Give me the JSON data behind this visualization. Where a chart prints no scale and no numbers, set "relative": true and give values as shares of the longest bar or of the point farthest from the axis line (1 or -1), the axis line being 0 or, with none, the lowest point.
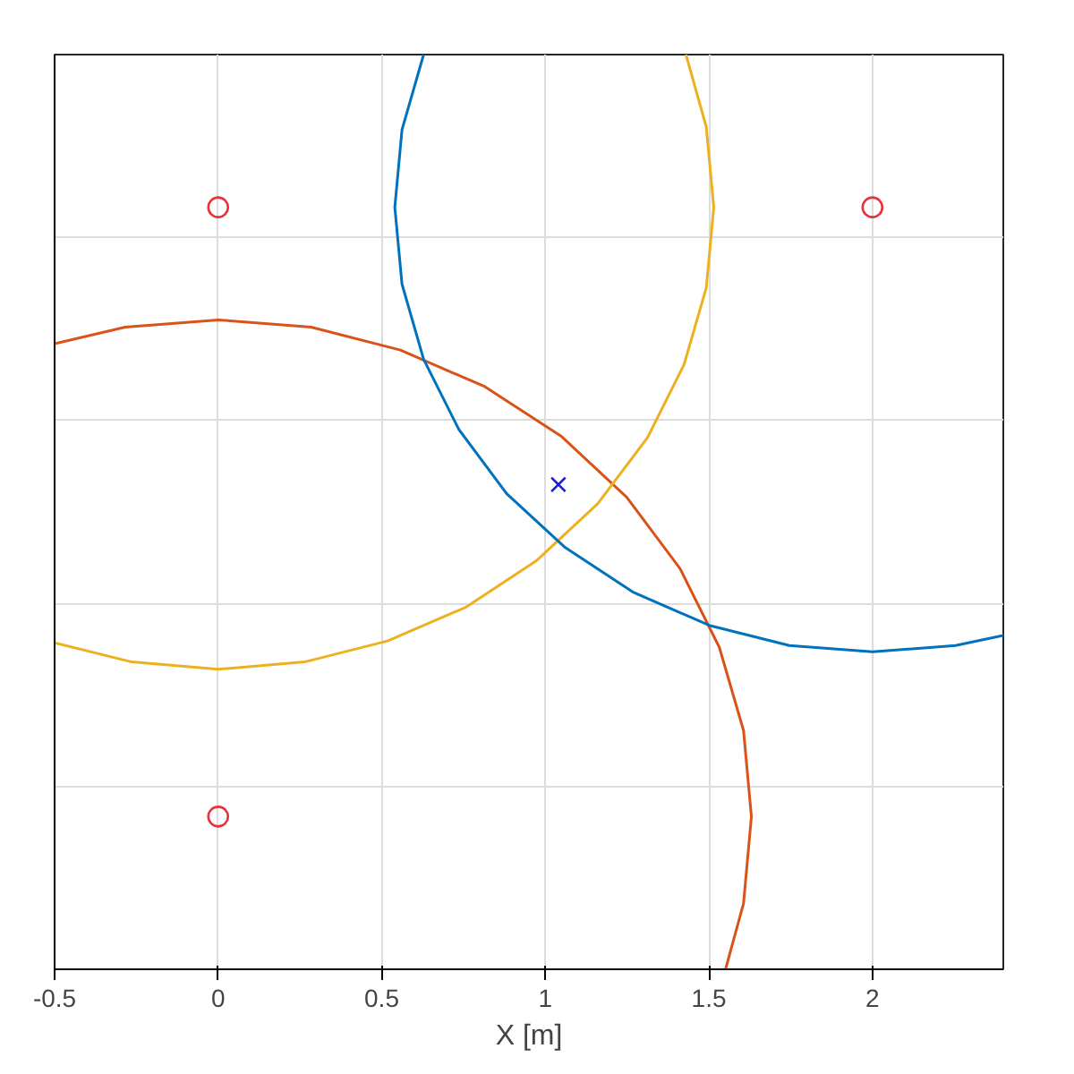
{
  "chart_data": {
    "type": "line",
    "relative": true,
    "xlabel": "X [m]",
    "xlim": [
      -0.5,
      2.4
    ],
    "xticks": [
      -0.5,
      0,
      0.5,
      1,
      1.5,
      2
    ],
    "grid": true,
    "line_style": "solid",
    "series": [
      {
        "color": "#d95319",
        "x": [
          -0.5,
          -0.284,
          0,
          0.284,
          0.557,
          0.815,
          1.048,
          1.249,
          1.412,
          1.532,
          1.606,
          1.63,
          1.606,
          1.551
        ],
        "values": [
          0.684,
          0.702,
          0.71,
          0.702,
          0.677,
          0.637,
          0.583,
          0.516,
          0.438,
          0.352,
          0.261,
          0.167,
          0.072,
          0
        ]
      },
      {
        "color": "#edb120",
        "x": [
          1.43,
          1.492,
          1.515,
          1.492,
          1.424,
          1.312,
          1.16,
          0.974,
          0.758,
          0.518,
          0.264,
          0,
          -0.264,
          -0.5
        ],
        "values": [
          1,
          0.921,
          0.833,
          0.745,
          0.661,
          0.581,
          0.509,
          0.447,
          0.396,
          0.359,
          0.336,
          0.328,
          0.336,
          0.357
        ]
      },
      {
        "color": "#0072bd",
        "x": [
          0.628,
          0.562,
          0.54,
          0.562,
          0.628,
          0.736,
          0.882,
          1.061,
          1.27,
          1.501,
          1.746,
          2,
          2.254,
          2.4
        ],
        "values": [
          1,
          0.918,
          0.833,
          0.749,
          0.667,
          0.59,
          0.52,
          0.461,
          0.412,
          0.376,
          0.354,
          0.347,
          0.354,
          0.365
        ]
      },
      {
        "type": "scatter",
        "marker": "circle",
        "color": "#e8323c",
        "x": [
          0,
          2,
          0
        ],
        "values": [
          0.833,
          0.833,
          0.167
        ]
      },
      {
        "type": "scatter",
        "marker": "cross",
        "color": "#1a1adb",
        "x": [
          1.04
        ],
        "values": [
          0.53
        ]
      }
    ]
  }
}
